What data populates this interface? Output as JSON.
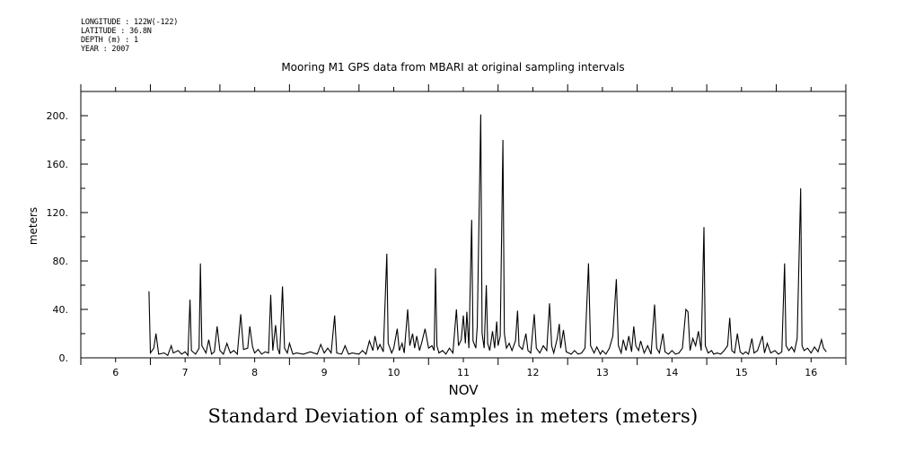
{
  "header_meta": [
    "LONGITUDE : 122W(-122)",
    "LATITUDE : 36.8N",
    "DEPTH (m) : 1",
    "YEAR : 2007"
  ],
  "caption": "Standard Deviation of samples in meters (meters)",
  "chart_data": {
    "type": "line",
    "title": "Mooring M1 GPS data from MBARI at original sampling intervals",
    "xlabel": "NOV",
    "ylabel": "meters",
    "xlim": [
      5.5,
      16.5
    ],
    "ylim": [
      0,
      220
    ],
    "y_ticks": [
      0,
      40,
      80,
      120,
      160,
      200
    ],
    "y_tick_labels": [
      "0.",
      "40.",
      "80.",
      "120.",
      "160.",
      "200."
    ],
    "x_ticks": [
      6,
      7,
      8,
      9,
      10,
      11,
      12,
      13,
      14,
      15,
      16
    ],
    "x_tick_labels": [
      "6",
      "7",
      "8",
      "9",
      "10",
      "11",
      "12",
      "13",
      "14",
      "15",
      "16"
    ],
    "grid": false,
    "series": [
      {
        "values": [
          [
            6.48,
            55
          ],
          [
            6.5,
            4
          ],
          [
            6.55,
            8
          ],
          [
            6.58,
            20
          ],
          [
            6.62,
            3
          ],
          [
            6.7,
            4
          ],
          [
            6.75,
            2
          ],
          [
            6.8,
            10
          ],
          [
            6.83,
            4
          ],
          [
            6.9,
            6
          ],
          [
            6.95,
            3
          ],
          [
            7.0,
            5
          ],
          [
            7.04,
            2
          ],
          [
            7.07,
            48
          ],
          [
            7.09,
            6
          ],
          [
            7.15,
            3
          ],
          [
            7.2,
            8
          ],
          [
            7.22,
            78
          ],
          [
            7.24,
            10
          ],
          [
            7.3,
            4
          ],
          [
            7.34,
            15
          ],
          [
            7.38,
            3
          ],
          [
            7.42,
            5
          ],
          [
            7.46,
            26
          ],
          [
            7.5,
            6
          ],
          [
            7.55,
            3
          ],
          [
            7.6,
            12
          ],
          [
            7.65,
            4
          ],
          [
            7.7,
            6
          ],
          [
            7.75,
            3
          ],
          [
            7.8,
            36
          ],
          [
            7.84,
            7
          ],
          [
            7.9,
            8
          ],
          [
            7.93,
            26
          ],
          [
            7.97,
            9
          ],
          [
            8.0,
            4
          ],
          [
            8.05,
            7
          ],
          [
            8.1,
            3
          ],
          [
            8.15,
            5
          ],
          [
            8.2,
            4
          ],
          [
            8.23,
            52
          ],
          [
            8.26,
            6
          ],
          [
            8.3,
            27
          ],
          [
            8.33,
            8
          ],
          [
            8.36,
            3
          ],
          [
            8.4,
            59
          ],
          [
            8.43,
            8
          ],
          [
            8.47,
            4
          ],
          [
            8.5,
            12
          ],
          [
            8.55,
            3
          ],
          [
            8.6,
            4
          ],
          [
            8.7,
            3
          ],
          [
            8.8,
            5
          ],
          [
            8.9,
            3
          ],
          [
            8.95,
            11
          ],
          [
            9.0,
            4
          ],
          [
            9.05,
            8
          ],
          [
            9.1,
            4
          ],
          [
            9.15,
            35
          ],
          [
            9.18,
            4
          ],
          [
            9.25,
            3
          ],
          [
            9.3,
            10
          ],
          [
            9.35,
            3
          ],
          [
            9.4,
            4
          ],
          [
            9.5,
            3
          ],
          [
            9.55,
            6
          ],
          [
            9.6,
            3
          ],
          [
            9.65,
            14
          ],
          [
            9.7,
            6
          ],
          [
            9.73,
            18
          ],
          [
            9.77,
            7
          ],
          [
            9.8,
            11
          ],
          [
            9.85,
            5
          ],
          [
            9.9,
            86
          ],
          [
            9.92,
            12
          ],
          [
            9.97,
            4
          ],
          [
            10.0,
            8
          ],
          [
            10.05,
            24
          ],
          [
            10.08,
            6
          ],
          [
            10.12,
            12
          ],
          [
            10.15,
            4
          ],
          [
            10.2,
            40
          ],
          [
            10.23,
            10
          ],
          [
            10.27,
            20
          ],
          [
            10.3,
            8
          ],
          [
            10.33,
            18
          ],
          [
            10.37,
            6
          ],
          [
            10.4,
            12
          ],
          [
            10.45,
            24
          ],
          [
            10.5,
            8
          ],
          [
            10.55,
            10
          ],
          [
            10.58,
            6
          ],
          [
            10.6,
            74
          ],
          [
            10.62,
            10
          ],
          [
            10.65,
            4
          ],
          [
            10.7,
            6
          ],
          [
            10.75,
            3
          ],
          [
            10.8,
            8
          ],
          [
            10.85,
            4
          ],
          [
            10.9,
            40
          ],
          [
            10.93,
            10
          ],
          [
            10.97,
            15
          ],
          [
            11.0,
            35
          ],
          [
            11.03,
            12
          ],
          [
            11.05,
            38
          ],
          [
            11.08,
            8
          ],
          [
            11.12,
            114
          ],
          [
            11.14,
            14
          ],
          [
            11.18,
            8
          ],
          [
            11.2,
            26
          ],
          [
            11.25,
            201
          ],
          [
            11.27,
            20
          ],
          [
            11.3,
            8
          ],
          [
            11.33,
            60
          ],
          [
            11.35,
            12
          ],
          [
            11.38,
            6
          ],
          [
            11.42,
            22
          ],
          [
            11.45,
            8
          ],
          [
            11.48,
            30
          ],
          [
            11.5,
            10
          ],
          [
            11.53,
            18
          ],
          [
            11.57,
            180
          ],
          [
            11.59,
            20
          ],
          [
            11.62,
            8
          ],
          [
            11.66,
            12
          ],
          [
            11.7,
            6
          ],
          [
            11.75,
            14
          ],
          [
            11.78,
            39
          ],
          [
            11.8,
            10
          ],
          [
            11.85,
            7
          ],
          [
            11.9,
            20
          ],
          [
            11.93,
            6
          ],
          [
            11.97,
            4
          ],
          [
            12.02,
            36
          ],
          [
            12.05,
            8
          ],
          [
            12.1,
            4
          ],
          [
            12.15,
            10
          ],
          [
            12.2,
            6
          ],
          [
            12.24,
            45
          ],
          [
            12.27,
            10
          ],
          [
            12.3,
            4
          ],
          [
            12.35,
            16
          ],
          [
            12.38,
            28
          ],
          [
            12.4,
            8
          ],
          [
            12.44,
            23
          ],
          [
            12.48,
            5
          ],
          [
            12.55,
            3
          ],
          [
            12.6,
            6
          ],
          [
            12.65,
            3
          ],
          [
            12.7,
            4
          ],
          [
            12.75,
            8
          ],
          [
            12.8,
            78
          ],
          [
            12.83,
            10
          ],
          [
            12.88,
            4
          ],
          [
            12.92,
            9
          ],
          [
            12.97,
            3
          ],
          [
            13.0,
            6
          ],
          [
            13.05,
            3
          ],
          [
            13.1,
            8
          ],
          [
            13.15,
            18
          ],
          [
            13.2,
            65
          ],
          [
            13.23,
            10
          ],
          [
            13.27,
            4
          ],
          [
            13.3,
            15
          ],
          [
            13.34,
            6
          ],
          [
            13.38,
            18
          ],
          [
            13.42,
            5
          ],
          [
            13.45,
            26
          ],
          [
            13.48,
            10
          ],
          [
            13.52,
            6
          ],
          [
            13.55,
            14
          ],
          [
            13.6,
            4
          ],
          [
            13.65,
            10
          ],
          [
            13.7,
            3
          ],
          [
            13.75,
            44
          ],
          [
            13.78,
            8
          ],
          [
            13.82,
            4
          ],
          [
            13.87,
            20
          ],
          [
            13.9,
            5
          ],
          [
            13.95,
            3
          ],
          [
            14.0,
            6
          ],
          [
            14.05,
            3
          ],
          [
            14.1,
            4
          ],
          [
            14.15,
            8
          ],
          [
            14.2,
            40
          ],
          [
            14.23,
            38
          ],
          [
            14.26,
            6
          ],
          [
            14.3,
            16
          ],
          [
            14.34,
            10
          ],
          [
            14.38,
            22
          ],
          [
            14.42,
            6
          ],
          [
            14.46,
            108
          ],
          [
            14.48,
            10
          ],
          [
            14.52,
            4
          ],
          [
            14.57,
            6
          ],
          [
            14.6,
            3
          ],
          [
            14.65,
            4
          ],
          [
            14.7,
            3
          ],
          [
            14.75,
            6
          ],
          [
            14.8,
            10
          ],
          [
            14.83,
            33
          ],
          [
            14.86,
            6
          ],
          [
            14.9,
            4
          ],
          [
            14.94,
            20
          ],
          [
            14.98,
            5
          ],
          [
            15.02,
            3
          ],
          [
            15.06,
            5
          ],
          [
            15.1,
            3
          ],
          [
            15.15,
            16
          ],
          [
            15.18,
            4
          ],
          [
            15.23,
            6
          ],
          [
            15.3,
            18
          ],
          [
            15.33,
            4
          ],
          [
            15.37,
            12
          ],
          [
            15.42,
            4
          ],
          [
            15.48,
            6
          ],
          [
            15.53,
            3
          ],
          [
            15.58,
            5
          ],
          [
            15.62,
            78
          ],
          [
            15.64,
            10
          ],
          [
            15.68,
            6
          ],
          [
            15.72,
            9
          ],
          [
            15.76,
            5
          ],
          [
            15.8,
            16
          ],
          [
            15.85,
            140
          ],
          [
            15.87,
            10
          ],
          [
            15.9,
            6
          ],
          [
            15.95,
            8
          ],
          [
            16.0,
            4
          ],
          [
            16.05,
            9
          ],
          [
            16.1,
            5
          ],
          [
            16.15,
            15
          ],
          [
            16.18,
            8
          ],
          [
            16.22,
            5
          ]
        ]
      }
    ]
  }
}
